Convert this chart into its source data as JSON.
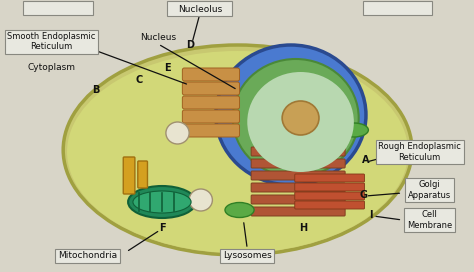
{
  "bg_color": "#d8d5c8",
  "cell_bg": "#f5f5f0",
  "labels": {
    "top_left_box": "",
    "top_center_box": "Nucleolus",
    "top_right_box": "",
    "smooth_er": "Smooth Endoplasmic\nReticulum",
    "nucleus": "Nucleus",
    "cytoplasm": "Cytoplasm",
    "B": "B",
    "C": "C",
    "D": "D",
    "E": "E",
    "A": "A",
    "F": "F",
    "G": "G",
    "H": "H",
    "I": "I",
    "rough_er": "Rough Endoplasmic\nReticulum",
    "golgi": "Golgi\nApparatus",
    "cell_membrane": "Cell\nMembrane",
    "mitochondria": "Mitochondria",
    "lysosomes": "Lysosomes"
  },
  "colors": {
    "cell_outer": "#c8c87a",
    "cell_inner": "#d4d87a",
    "nucleus_blue": "#3a6abf",
    "nucleus_green": "#8aaa6a",
    "nucleolus_tan": "#c8a870",
    "rough_er_color": "#b05030",
    "smooth_er_color": "#c8a060",
    "mitochondria_teal": "#208060",
    "label_bg": "#e8e8e8",
    "arrow_color": "#111111",
    "text_color": "#111111",
    "box_border": "#888888"
  },
  "figsize": [
    4.74,
    2.72
  ],
  "dpi": 100
}
